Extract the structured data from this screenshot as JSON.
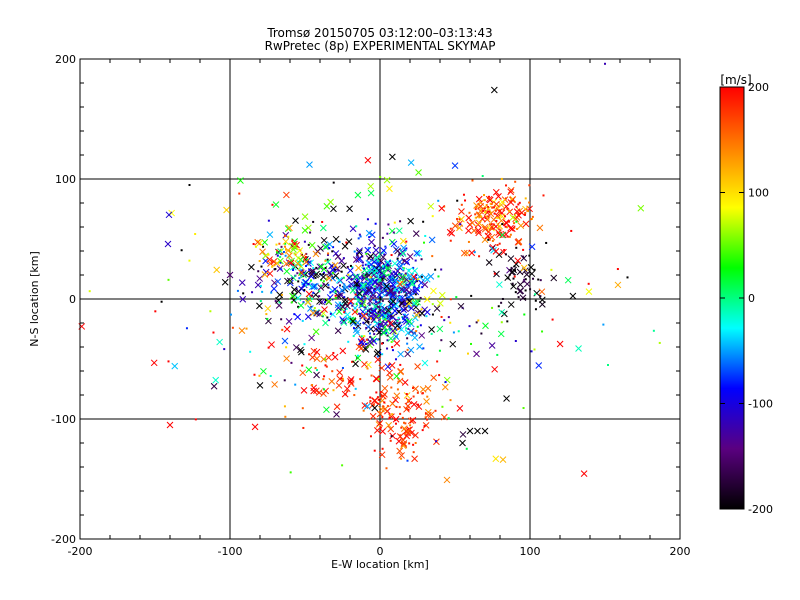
{
  "chart_data": {
    "type": "scatter",
    "title": "Tromsø 20150705 03:12:00–03:13:43",
    "subtitle": "RwPretec (8p) EXPERIMENTAL SKYMAP",
    "xlabel": "E-W location [km]",
    "ylabel": "N-S location [km]",
    "xlim": [
      -200,
      200
    ],
    "ylim": [
      -200,
      200
    ],
    "xticks": [
      "-200",
      "-100",
      "0",
      "100",
      "200"
    ],
    "yticks": [
      "-200",
      "-100",
      "0",
      "100",
      "200"
    ],
    "grid": true,
    "colorbar": {
      "label": "[m/s]",
      "range": [
        -200,
        200
      ],
      "ticks": [
        "200",
        "100",
        "0",
        "-100",
        "-200"
      ],
      "colormap": [
        "#000000",
        "#5a0080",
        "#0000ff",
        "#00ffff",
        "#00ff00",
        "#ffff00",
        "#ff8000",
        "#ff0000"
      ]
    },
    "markers": [
      "x",
      "dot"
    ],
    "clusters": [
      {
        "cx": 2,
        "cy": 5,
        "sx": 14,
        "sy": 22,
        "n": 650,
        "vm": -80,
        "vs": 70
      },
      {
        "cx": 75,
        "cy": 68,
        "sx": 13,
        "sy": 12,
        "n": 180,
        "vm": 170,
        "vs": 40
      },
      {
        "cx": 15,
        "cy": -95,
        "sx": 12,
        "sy": 18,
        "n": 130,
        "vm": 180,
        "vs": 30
      },
      {
        "cx": -45,
        "cy": 15,
        "sx": 20,
        "sy": 18,
        "n": 220,
        "vm": -120,
        "vs": 90
      },
      {
        "cx": -60,
        "cy": 35,
        "sx": 12,
        "sy": 10,
        "n": 70,
        "vm": 120,
        "vs": 60
      },
      {
        "cx": 95,
        "cy": 20,
        "sx": 12,
        "sy": 15,
        "n": 60,
        "vm": -190,
        "vs": 20
      },
      {
        "cx": -30,
        "cy": -65,
        "sx": 25,
        "sy": 18,
        "n": 70,
        "vm": 185,
        "vs": 25
      },
      {
        "cx": 0,
        "cy": 0,
        "sx": 75,
        "sy": 60,
        "n": 280,
        "vm": 0,
        "vs": 160
      }
    ],
    "points": [
      {
        "x": -140,
        "y": -105,
        "v": 200,
        "m": "x"
      },
      {
        "x": -141,
        "y": -52,
        "v": 200,
        "m": "dot"
      },
      {
        "x": -127,
        "y": 95,
        "v": -200,
        "m": "dot"
      },
      {
        "x": -100,
        "y": 20,
        "v": -150,
        "m": "x"
      },
      {
        "x": -80,
        "y": -72,
        "v": -200,
        "m": "x"
      },
      {
        "x": -47,
        "y": 112,
        "v": -50,
        "m": "x"
      },
      {
        "x": 55,
        "y": -120,
        "v": -200,
        "m": "x"
      },
      {
        "x": 70,
        "y": -110,
        "v": -200,
        "m": "x"
      },
      {
        "x": 65,
        "y": -110,
        "v": -200,
        "m": "x"
      },
      {
        "x": 60,
        "y": -110,
        "v": -200,
        "m": "x"
      },
      {
        "x": 150,
        "y": 196,
        "v": -120,
        "m": "dot"
      },
      {
        "x": 165,
        "y": 18,
        "v": -200,
        "m": "dot"
      },
      {
        "x": 152,
        "y": -55,
        "v": 0,
        "m": "dot"
      }
    ]
  }
}
